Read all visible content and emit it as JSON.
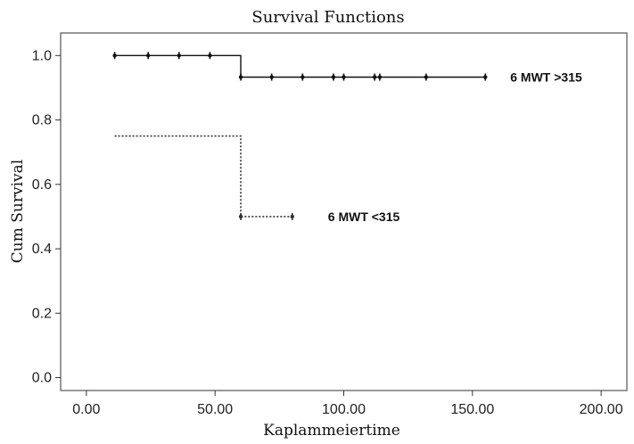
{
  "chart_data": {
    "type": "line",
    "title": "Survival Functions",
    "xlabel": "Kaplammeiertime",
    "ylabel": "Cum Survival",
    "xlim": [
      -10,
      210
    ],
    "ylim": [
      -0.04,
      1.07
    ],
    "x_ticks": [
      "0.00",
      "50.00",
      "100.00",
      "150.00",
      "200.00"
    ],
    "y_ticks": [
      "0.0",
      "0.2",
      "0.4",
      "0.6",
      "0.8",
      "1.0"
    ],
    "grid": false,
    "series": [
      {
        "name": "6 MWT >315",
        "color": "#111111",
        "line_style": "solid",
        "steps": [
          [
            11,
            1.0
          ],
          [
            60,
            1.0
          ],
          [
            60,
            0.933
          ],
          [
            155,
            0.933
          ]
        ],
        "censor_points": [
          [
            11,
            1.0
          ],
          [
            24,
            1.0
          ],
          [
            36,
            1.0
          ],
          [
            48,
            1.0
          ],
          [
            60,
            0.933
          ],
          [
            72,
            0.933
          ],
          [
            84,
            0.933
          ],
          [
            96,
            0.933
          ],
          [
            100,
            0.933
          ],
          [
            112,
            0.933
          ],
          [
            114,
            0.933
          ],
          [
            132,
            0.933
          ],
          [
            155,
            0.933
          ]
        ]
      },
      {
        "name": "6 MWT <315",
        "color": "#333333",
        "line_style": "dotted",
        "steps": [
          [
            11,
            0.75
          ],
          [
            60,
            0.75
          ],
          [
            60,
            0.5
          ],
          [
            80,
            0.5
          ]
        ],
        "censor_points": [
          [
            60,
            0.5
          ],
          [
            80,
            0.5
          ]
        ]
      }
    ]
  }
}
